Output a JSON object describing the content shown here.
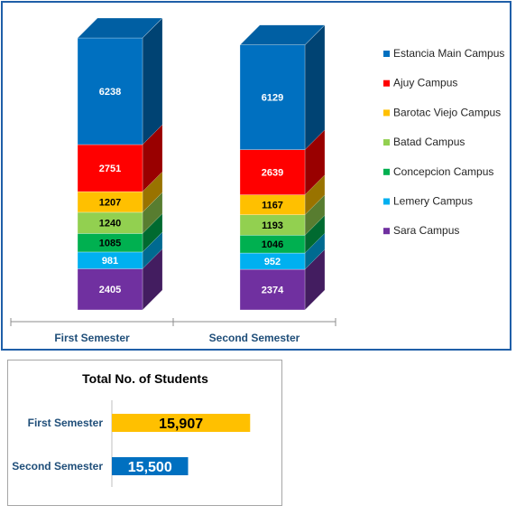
{
  "chart_data": [
    {
      "type": "bar",
      "subtype": "stacked-3d",
      "categories": [
        "First Semester",
        "Second Semester"
      ],
      "series": [
        {
          "name": "Sara Campus",
          "values": [
            2405,
            2374
          ],
          "color": "#7030a0"
        },
        {
          "name": "Lemery Campus",
          "values": [
            981,
            952
          ],
          "color": "#00b0f0"
        },
        {
          "name": "Concepcion Campus",
          "values": [
            1085,
            1046
          ],
          "color": "#00b050"
        },
        {
          "name": "Batad Campus",
          "values": [
            1240,
            1193
          ],
          "color": "#92d050"
        },
        {
          "name": "Barotac Viejo Campus",
          "values": [
            1207,
            1167
          ],
          "color": "#ffc000"
        },
        {
          "name": "Ajuy Campus",
          "values": [
            2751,
            2639
          ],
          "color": "#ff0000"
        },
        {
          "name": "Estancia Main Campus",
          "values": [
            6238,
            6129
          ],
          "color": "#0070c0"
        }
      ],
      "legend": {
        "position": "right",
        "order": [
          "Estancia Main Campus",
          "Ajuy Campus",
          "Barotac Viejo Campus",
          "Batad Campus",
          "Concepcion Campus",
          "Lemery Campus",
          "Sara Campus"
        ]
      },
      "data_labels": true,
      "gridlines": false,
      "y_axis_visible": false,
      "ylim": [
        0,
        15907
      ]
    },
    {
      "type": "bar",
      "orientation": "horizontal",
      "title": "Total No. of Students",
      "categories": [
        "First Semester",
        "Second Semester"
      ],
      "values": [
        15907,
        15500
      ],
      "value_labels": [
        "15,907",
        "15,500"
      ],
      "colors": [
        "#ffc000",
        "#0070c0"
      ],
      "label_colors": [
        "#000000",
        "#ffffff"
      ],
      "category_label_color": "#1f4e79",
      "xlim": [
        15000,
        16000
      ]
    }
  ]
}
